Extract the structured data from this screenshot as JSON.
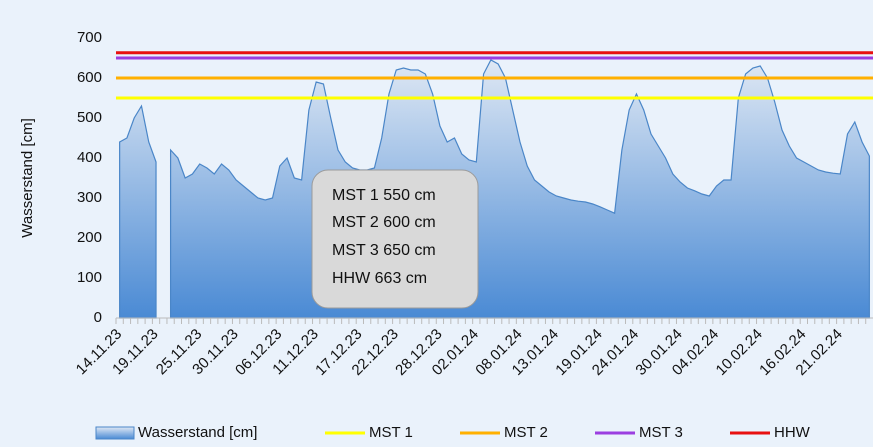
{
  "chart_data": {
    "type": "area",
    "y_label": "Wasserstand [cm]",
    "ylim": [
      0,
      700
    ],
    "yticks": [
      0,
      100,
      200,
      300,
      400,
      500,
      600,
      700
    ],
    "grid": false,
    "categories": [
      "14.11.23",
      null,
      null,
      null,
      null,
      "19.11.23",
      null,
      null,
      null,
      null,
      null,
      "25.11.23",
      null,
      null,
      null,
      null,
      "30.11.23",
      null,
      null,
      null,
      null,
      null,
      "06.12.23",
      null,
      null,
      null,
      null,
      "11.12.23",
      null,
      null,
      null,
      null,
      null,
      "17.12.23",
      null,
      null,
      null,
      null,
      "22.12.23",
      null,
      null,
      null,
      null,
      null,
      "28.12.23",
      null,
      null,
      null,
      null,
      "02.01.24",
      null,
      null,
      null,
      null,
      null,
      "08.01.24",
      null,
      null,
      null,
      null,
      "13.01.24",
      null,
      null,
      null,
      null,
      null,
      "19.01.24",
      null,
      null,
      null,
      null,
      "24.01.24",
      null,
      null,
      null,
      null,
      null,
      "30.01.24",
      null,
      null,
      null,
      null,
      "04.02.24",
      null,
      null,
      null,
      null,
      null,
      "10.02.24",
      null,
      null,
      null,
      null,
      null,
      "16.02.24",
      null,
      null,
      null,
      null,
      "21.02.24",
      null,
      null,
      null,
      null
    ],
    "series": [
      {
        "name": "Wasserstand [cm]",
        "color": "#4a86c8",
        "values": [
          440,
          450,
          500,
          530,
          440,
          390,
          null,
          420,
          400,
          350,
          360,
          385,
          375,
          360,
          385,
          370,
          345,
          330,
          315,
          300,
          295,
          300,
          380,
          400,
          350,
          345,
          520,
          590,
          585,
          500,
          420,
          390,
          375,
          370,
          370,
          375,
          450,
          560,
          620,
          625,
          620,
          620,
          610,
          560,
          480,
          440,
          450,
          410,
          395,
          390,
          610,
          645,
          635,
          600,
          520,
          440,
          380,
          345,
          330,
          315,
          305,
          300,
          295,
          292,
          290,
          285,
          278,
          270,
          262,
          420,
          520,
          560,
          520,
          460,
          430,
          400,
          360,
          340,
          325,
          318,
          310,
          305,
          330,
          345,
          345,
          550,
          610,
          625,
          630,
          600,
          540,
          470,
          430,
          400,
          390,
          380,
          370,
          365,
          362,
          360,
          460,
          490,
          440,
          405
        ]
      },
      {
        "name": "MST 1",
        "color": "#ffff00",
        "value": 550
      },
      {
        "name": "MST 2",
        "color": "#ffb000",
        "value": 600
      },
      {
        "name": "MST 3",
        "color": "#9b3ee0",
        "value": 650
      },
      {
        "name": "HHW",
        "color": "#e81010",
        "value": 663
      }
    ],
    "annotation": [
      "MST 1 550 cm",
      "MST 2 600 cm",
      "MST 3 650 cm",
      "HHW   663 cm"
    ]
  }
}
